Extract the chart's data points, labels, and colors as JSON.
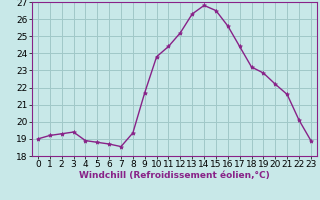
{
  "x": [
    0,
    1,
    2,
    3,
    4,
    5,
    6,
    7,
    8,
    9,
    10,
    11,
    12,
    13,
    14,
    15,
    16,
    17,
    18,
    19,
    20,
    21,
    22,
    23
  ],
  "y": [
    19.0,
    19.2,
    19.3,
    19.4,
    18.9,
    18.8,
    18.7,
    18.55,
    19.35,
    21.7,
    23.8,
    24.4,
    25.2,
    26.3,
    26.8,
    26.5,
    25.6,
    24.4,
    23.2,
    22.85,
    22.2,
    21.6,
    20.1,
    18.9
  ],
  "line_color": "#882288",
  "marker": "*",
  "marker_size": 3,
  "background_color": "#c8e8e8",
  "grid_color": "#a0c8c8",
  "xlabel": "Windchill (Refroidissement éolien,°C)",
  "xlabel_fontsize": 6.5,
  "tick_fontsize": 6.5,
  "ylim": [
    18,
    27
  ],
  "yticks": [
    18,
    19,
    20,
    21,
    22,
    23,
    24,
    25,
    26,
    27
  ],
  "xlim": [
    -0.5,
    23.5
  ],
  "xticks": [
    0,
    1,
    2,
    3,
    4,
    5,
    6,
    7,
    8,
    9,
    10,
    11,
    12,
    13,
    14,
    15,
    16,
    17,
    18,
    19,
    20,
    21,
    22,
    23
  ]
}
